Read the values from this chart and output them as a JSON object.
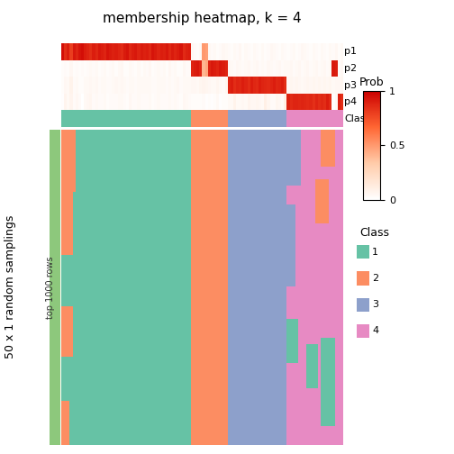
{
  "title": "membership heatmap, k = 4",
  "n_cols": 100,
  "n_rows": 50,
  "class_colors": [
    "#66C2A5",
    "#FC8D62",
    "#8DA0CB",
    "#E78AC3"
  ],
  "side_bar_color": "#8DC87C",
  "ylabel_main": "50 x 1 random samplings",
  "ylabel_sub": "top 1000 rows",
  "class_assignments": [
    1,
    1,
    1,
    1,
    1,
    1,
    1,
    1,
    1,
    1,
    1,
    1,
    1,
    1,
    1,
    1,
    1,
    1,
    1,
    1,
    1,
    1,
    1,
    1,
    1,
    1,
    1,
    1,
    1,
    1,
    1,
    1,
    1,
    1,
    1,
    1,
    1,
    1,
    1,
    1,
    1,
    1,
    1,
    1,
    1,
    1,
    2,
    2,
    2,
    2,
    2,
    2,
    2,
    2,
    2,
    2,
    2,
    2,
    2,
    3,
    3,
    3,
    3,
    3,
    3,
    3,
    3,
    3,
    3,
    3,
    3,
    3,
    3,
    3,
    3,
    3,
    3,
    3,
    3,
    3,
    4,
    4,
    4,
    4,
    4,
    4,
    4,
    4,
    4,
    4,
    4,
    4,
    4,
    4,
    4,
    4,
    4,
    4,
    4,
    4
  ],
  "p1_values": [
    0.95,
    0.85,
    0.9,
    0.8,
    0.92,
    0.88,
    0.93,
    0.95,
    0.9,
    0.88,
    0.85,
    0.9,
    0.87,
    0.92,
    0.9,
    0.88,
    0.93,
    0.91,
    0.89,
    0.9,
    0.88,
    0.86,
    0.91,
    0.93,
    0.87,
    0.9,
    0.92,
    0.88,
    0.91,
    0.89,
    0.9,
    0.87,
    0.93,
    0.91,
    0.88,
    0.9,
    0.89,
    0.92,
    0.87,
    0.91,
    0.88,
    0.9,
    0.93,
    0.86,
    0.89,
    0.9,
    0.05,
    0.03,
    0.02,
    0.04,
    0.5,
    0.48,
    0.05,
    0.03,
    0.04,
    0.02,
    0.03,
    0.05,
    0.04,
    0.03,
    0.02,
    0.04,
    0.03,
    0.05,
    0.02,
    0.04,
    0.03,
    0.02,
    0.04,
    0.03,
    0.02,
    0.04,
    0.02,
    0.03,
    0.05,
    0.04,
    0.03,
    0.02,
    0.04,
    0.03,
    0.02,
    0.03,
    0.04,
    0.02,
    0.03,
    0.05,
    0.04,
    0.03,
    0.02,
    0.04,
    0.03,
    0.02,
    0.04,
    0.03,
    0.02,
    0.04,
    0.03,
    0.05,
    0.02,
    0.04
  ],
  "p2_values": [
    0.02,
    0.03,
    0.02,
    0.05,
    0.02,
    0.03,
    0.02,
    0.03,
    0.02,
    0.03,
    0.04,
    0.03,
    0.04,
    0.02,
    0.03,
    0.04,
    0.02,
    0.03,
    0.04,
    0.02,
    0.04,
    0.05,
    0.02,
    0.02,
    0.04,
    0.03,
    0.02,
    0.04,
    0.02,
    0.04,
    0.03,
    0.05,
    0.02,
    0.03,
    0.04,
    0.03,
    0.04,
    0.02,
    0.05,
    0.03,
    0.04,
    0.02,
    0.02,
    0.05,
    0.03,
    0.03,
    0.88,
    0.9,
    0.92,
    0.88,
    0.4,
    0.45,
    0.88,
    0.92,
    0.9,
    0.88,
    0.92,
    0.9,
    0.88,
    0.05,
    0.04,
    0.03,
    0.05,
    0.04,
    0.03,
    0.04,
    0.05,
    0.03,
    0.04,
    0.05,
    0.03,
    0.04,
    0.03,
    0.05,
    0.04,
    0.03,
    0.04,
    0.05,
    0.03,
    0.04,
    0.04,
    0.05,
    0.03,
    0.04,
    0.05,
    0.03,
    0.04,
    0.05,
    0.03,
    0.04,
    0.05,
    0.03,
    0.04,
    0.05,
    0.03,
    0.04,
    0.92,
    0.9,
    0.03,
    0.05
  ],
  "p3_values": [
    0.02,
    0.05,
    0.04,
    0.08,
    0.03,
    0.04,
    0.02,
    0.02,
    0.04,
    0.04,
    0.05,
    0.04,
    0.05,
    0.03,
    0.04,
    0.04,
    0.03,
    0.03,
    0.04,
    0.05,
    0.04,
    0.05,
    0.04,
    0.03,
    0.04,
    0.04,
    0.03,
    0.04,
    0.04,
    0.04,
    0.04,
    0.04,
    0.03,
    0.03,
    0.04,
    0.04,
    0.04,
    0.03,
    0.04,
    0.03,
    0.04,
    0.05,
    0.03,
    0.04,
    0.04,
    0.04,
    0.05,
    0.05,
    0.04,
    0.06,
    0.07,
    0.06,
    0.05,
    0.04,
    0.04,
    0.06,
    0.04,
    0.03,
    0.06,
    0.88,
    0.9,
    0.85,
    0.88,
    0.87,
    0.9,
    0.88,
    0.85,
    0.9,
    0.87,
    0.86,
    0.9,
    0.88,
    0.87,
    0.86,
    0.88,
    0.9,
    0.87,
    0.88,
    0.9,
    0.85,
    0.05,
    0.06,
    0.05,
    0.06,
    0.05,
    0.04,
    0.05,
    0.06,
    0.05,
    0.06,
    0.05,
    0.06,
    0.05,
    0.06,
    0.05,
    0.06,
    0.04,
    0.05,
    0.05,
    0.06
  ],
  "p4_values": [
    0.01,
    0.07,
    0.04,
    0.07,
    0.03,
    0.05,
    0.03,
    0.0,
    0.04,
    0.05,
    0.06,
    0.03,
    0.04,
    0.03,
    0.03,
    0.04,
    0.02,
    0.03,
    0.03,
    0.03,
    0.04,
    0.04,
    0.03,
    0.02,
    0.05,
    0.03,
    0.03,
    0.04,
    0.03,
    0.03,
    0.03,
    0.04,
    0.02,
    0.03,
    0.04,
    0.03,
    0.03,
    0.03,
    0.04,
    0.03,
    0.04,
    0.03,
    0.02,
    0.05,
    0.04,
    0.03,
    0.02,
    0.02,
    0.02,
    0.02,
    0.03,
    0.01,
    0.02,
    0.01,
    0.02,
    0.04,
    0.01,
    0.02,
    0.02,
    0.04,
    0.04,
    0.08,
    0.04,
    0.04,
    0.05,
    0.04,
    0.07,
    0.05,
    0.05,
    0.06,
    0.05,
    0.04,
    0.1,
    0.06,
    0.03,
    0.03,
    0.06,
    0.05,
    0.03,
    0.1,
    0.89,
    0.86,
    0.88,
    0.88,
    0.87,
    0.88,
    0.87,
    0.86,
    0.87,
    0.84,
    0.88,
    0.85,
    0.87,
    0.85,
    0.9,
    0.86,
    0.01,
    0.05,
    0.9,
    0.85
  ],
  "blocks": [
    [
      0,
      10,
      0,
      5,
      2
    ],
    [
      4,
      20,
      0,
      4,
      2
    ],
    [
      28,
      36,
      0,
      4,
      2
    ],
    [
      43,
      50,
      0,
      3,
      2
    ],
    [
      0,
      7,
      59,
      65,
      3
    ],
    [
      6,
      18,
      59,
      66,
      3
    ],
    [
      0,
      6,
      65,
      69,
      3
    ],
    [
      0,
      10,
      72,
      76,
      3
    ],
    [
      43,
      48,
      60,
      64,
      3
    ],
    [
      0,
      9,
      80,
      85,
      3
    ],
    [
      12,
      25,
      78,
      83,
      3
    ],
    [
      30,
      37,
      80,
      84,
      1
    ],
    [
      0,
      6,
      92,
      97,
      2
    ],
    [
      8,
      15,
      90,
      95,
      2
    ],
    [
      34,
      41,
      87,
      91,
      1
    ],
    [
      33,
      47,
      92,
      97,
      1
    ]
  ]
}
